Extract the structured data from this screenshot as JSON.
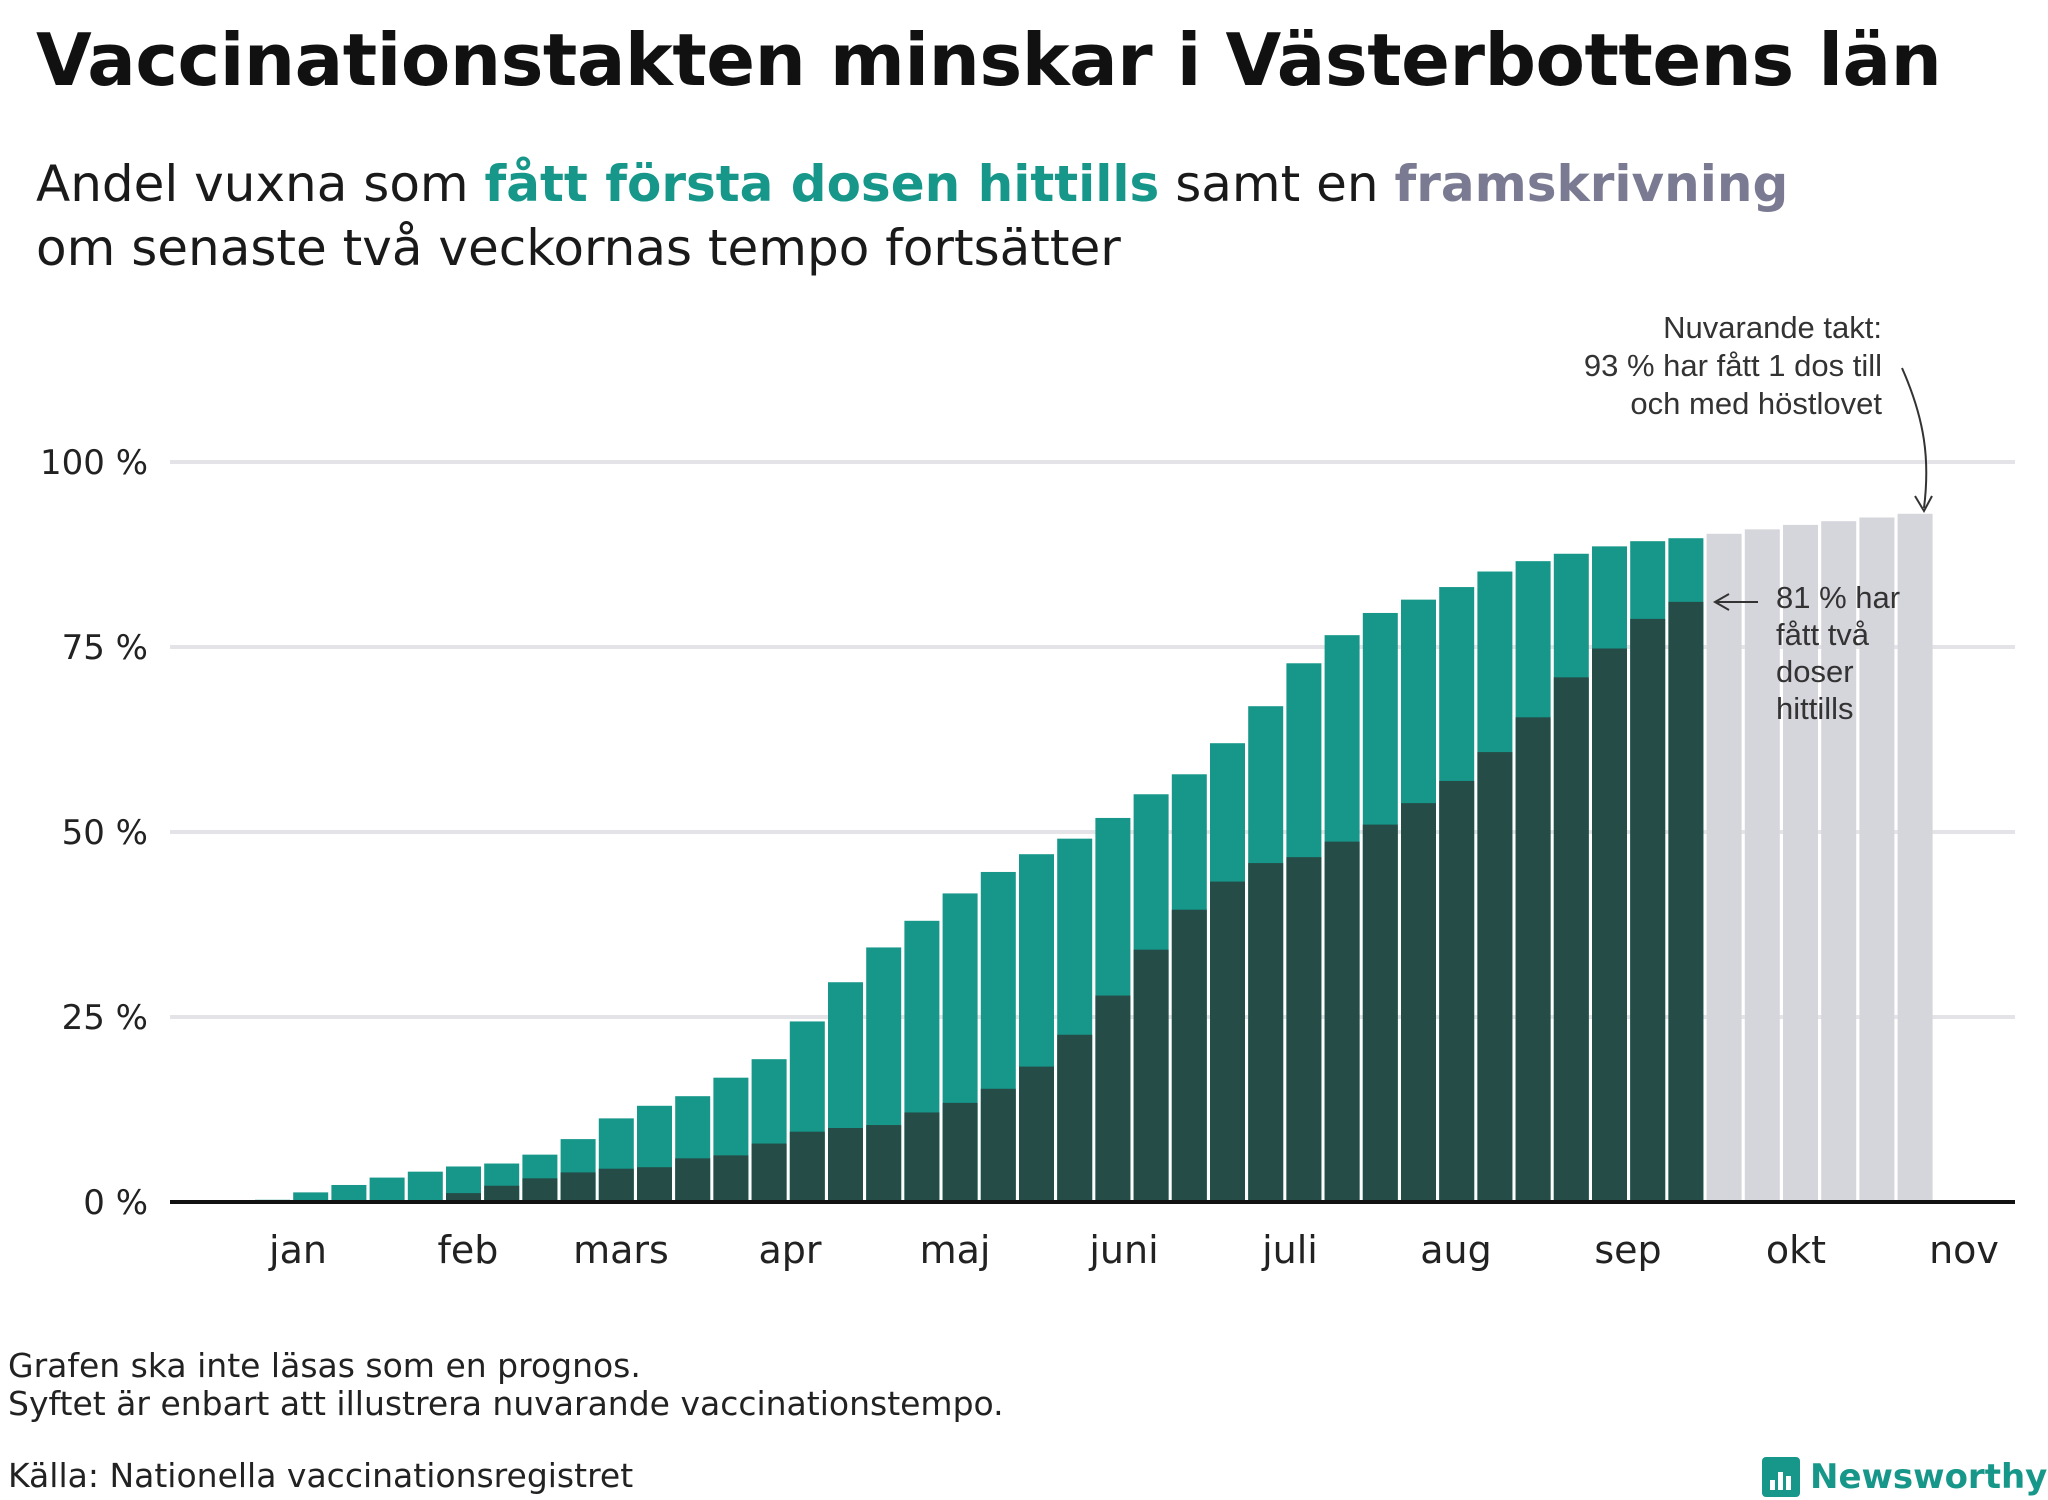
{
  "header": {
    "title": "Vaccinationstakten minskar i Västerbottens län",
    "subtitle_part1": "Andel vuxna som ",
    "subtitle_highlight_first": "fått första dosen hittills",
    "subtitle_part2": " samt en ",
    "subtitle_highlight_projection": "framskrivning",
    "subtitle_line2": "om senaste två veckornas tempo fortsätter"
  },
  "colors": {
    "first_dose": "#16978a",
    "two_doses": "#264c48",
    "projection": "#d5d5dc",
    "grid": "#e4e4e8",
    "baseline": "#111111"
  },
  "chart_data": {
    "type": "bar",
    "stacked": true,
    "y_unit": "%",
    "ylim": [
      0,
      100
    ],
    "y_ticks": [
      {
        "value": 0,
        "label": "0 %"
      },
      {
        "value": 25,
        "label": "25 %"
      },
      {
        "value": 50,
        "label": "50 %"
      },
      {
        "value": 75,
        "label": "75 %"
      },
      {
        "value": 100,
        "label": "100 %"
      }
    ],
    "x_tick_labels": [
      "jan",
      "feb",
      "mars",
      "apr",
      "maj",
      "juni",
      "juli",
      "aug",
      "sep",
      "okt",
      "nov"
    ],
    "grid": true,
    "series": [
      {
        "key": "first_dose",
        "values": [
          0.3,
          1.3,
          2.3,
          3.3,
          4.1,
          4.8,
          5.2,
          6.4,
          8.5,
          11.3,
          13.0,
          14.3,
          16.8,
          19.3,
          24.4,
          29.7,
          34.4,
          38.0,
          41.7,
          44.6,
          47.0,
          49.1,
          51.9,
          55.1,
          57.8,
          62.0,
          67.0,
          72.8,
          76.6,
          79.6,
          81.4,
          83.1,
          85.2,
          86.6,
          87.6,
          88.6,
          89.3,
          89.7
        ]
      },
      {
        "key": "two_doses",
        "values": [
          0,
          0,
          0,
          0,
          0.2,
          1.2,
          2.2,
          3.2,
          4.0,
          4.5,
          4.7,
          5.9,
          6.3,
          7.9,
          9.5,
          10.0,
          10.4,
          12.1,
          13.4,
          15.3,
          18.3,
          22.6,
          27.9,
          34.1,
          39.5,
          43.3,
          45.8,
          46.6,
          48.7,
          51.0,
          53.9,
          56.9,
          60.8,
          65.5,
          70.9,
          74.8,
          78.8,
          81.1
        ]
      },
      {
        "key": "projection",
        "values": [
          90.3,
          90.9,
          91.5,
          92.0,
          92.5,
          93.0
        ]
      }
    ],
    "annotations": [
      {
        "key": "projection_note",
        "lines": [
          "Nuvarande takt:",
          "93 % har fått 1 dos till",
          "och med höstlovet"
        ]
      },
      {
        "key": "two_dose_note",
        "lines": [
          "81 % har",
          "fått två",
          "doser",
          "hittills"
        ]
      }
    ]
  },
  "footer": {
    "note_line1": "Grafen ska inte läsas som en prognos.",
    "note_line2": "Syftet är enbart att illustrera nuvarande vaccinationstempo.",
    "source": "Källa: Nationella vaccinationsregistret",
    "brand": "Newsworthy"
  }
}
